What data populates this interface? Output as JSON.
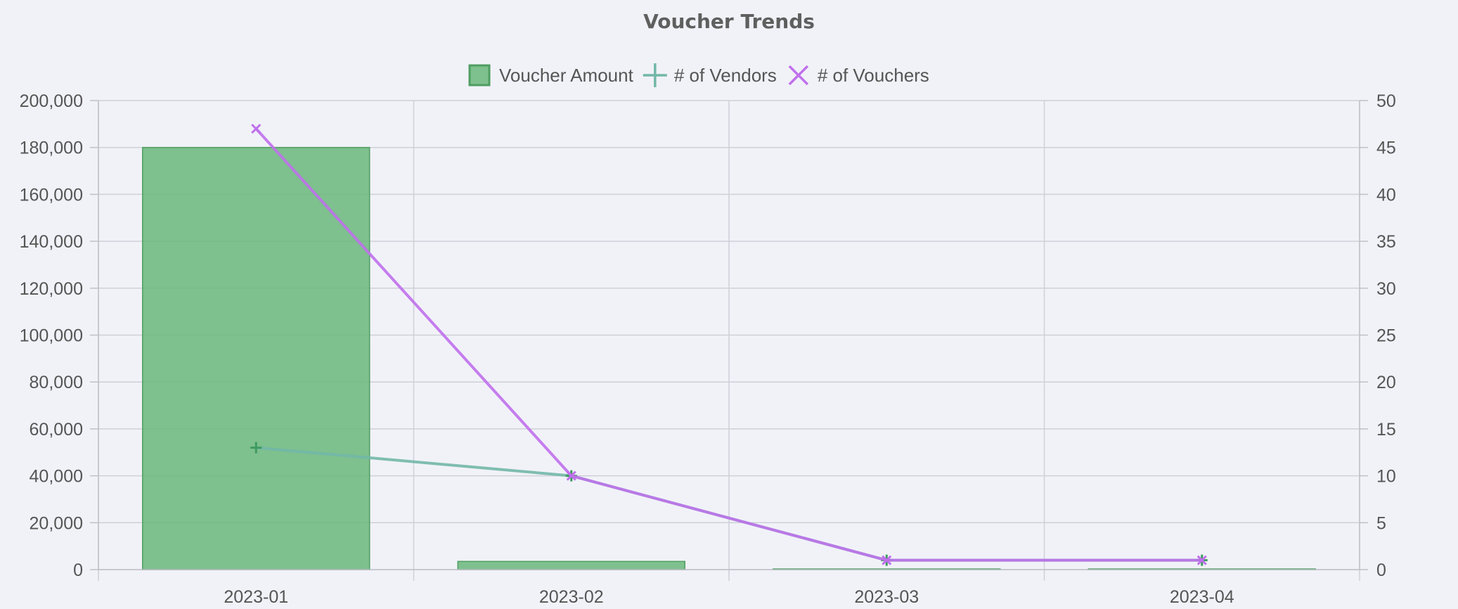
{
  "chart_data": {
    "type": "bar",
    "title": "Voucher Trends",
    "categories": [
      "2023-01",
      "2023-02",
      "2023-03",
      "2023-04"
    ],
    "series": [
      {
        "name": "Voucher Amount",
        "type": "bar",
        "axis": "left",
        "values": [
          180000,
          3500,
          300,
          300
        ],
        "color": "#6ab77b",
        "border_color": "#4f9e61"
      },
      {
        "name": "# of Vendors",
        "type": "line",
        "axis": "right",
        "marker": "plus",
        "values": [
          13,
          10,
          1,
          1
        ],
        "color": "#72b7a7"
      },
      {
        "name": "# of Vouchers",
        "type": "line",
        "axis": "right",
        "marker": "cross",
        "values": [
          47,
          10,
          1,
          1
        ],
        "color": "#c070ec"
      }
    ],
    "y_left": {
      "min": 0,
      "max": 200000,
      "step": 20000,
      "ticks": [
        "0",
        "20,000",
        "40,000",
        "60,000",
        "80,000",
        "100,000",
        "120,000",
        "140,000",
        "160,000",
        "180,000",
        "200,000"
      ]
    },
    "y_right": {
      "min": 0,
      "max": 50,
      "step": 5,
      "ticks": [
        "0",
        "5",
        "10",
        "15",
        "20",
        "25",
        "30",
        "35",
        "40",
        "45",
        "50"
      ]
    },
    "xlabel": "",
    "ylabel": "",
    "grid": true,
    "legend_position": "top-center",
    "background": "#f1f2f8"
  }
}
